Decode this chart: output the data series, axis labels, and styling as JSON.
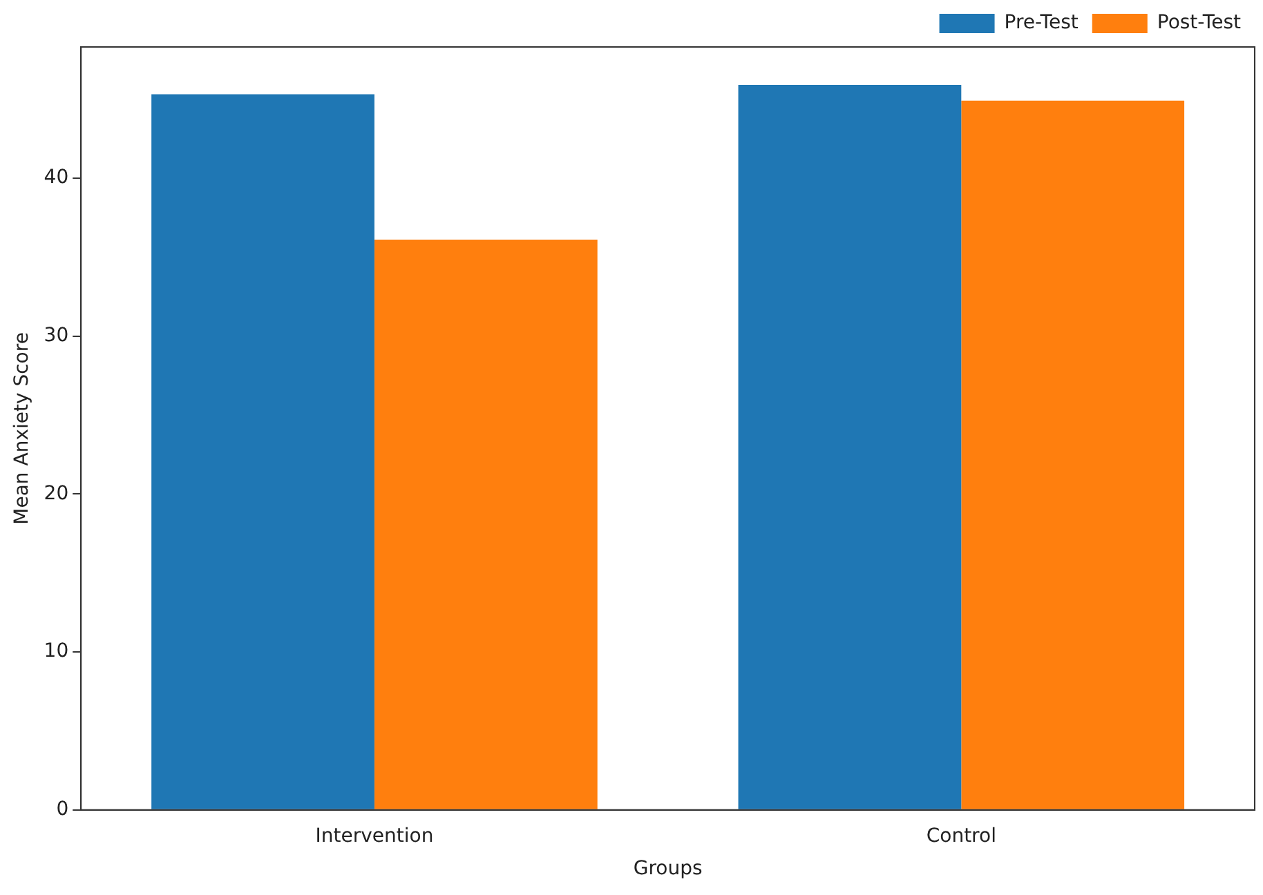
{
  "chart_data": {
    "type": "bar",
    "xlabel": "Groups",
    "ylabel": "Mean Anxiety Score",
    "categories": [
      "Intervention",
      "Control"
    ],
    "series": [
      {
        "name": "Pre-Test",
        "color": "#1f77b4",
        "values": [
          45.3,
          45.9
        ]
      },
      {
        "name": "Post-Test",
        "color": "#ff7f0e",
        "values": [
          36.1,
          44.9
        ]
      }
    ],
    "ylim": [
      0,
      48.3
    ],
    "yticks": [
      0,
      10,
      20,
      30,
      40
    ],
    "grid": false,
    "legend": "top right"
  }
}
